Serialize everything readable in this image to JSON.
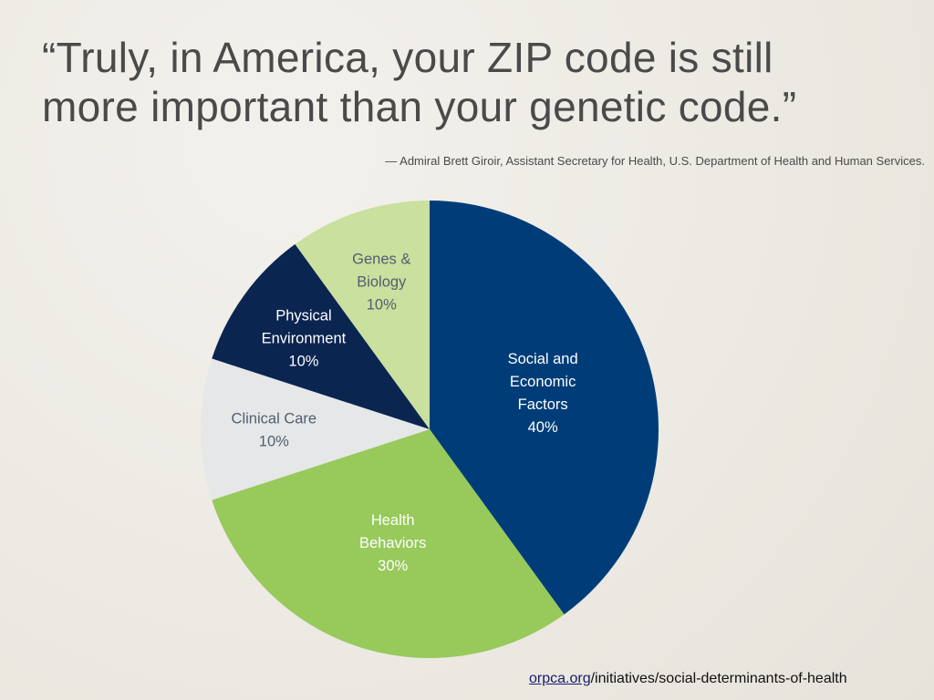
{
  "quote": {
    "line1": "“Truly, in America, your ZIP code is still",
    "line2": "more important than your genetic code.”"
  },
  "attribution": "— Admiral Brett Giroir, Assistant Secretary for Health, U.S. Department of Health and Human Services.",
  "chart_data": {
    "type": "pie",
    "title": "",
    "slices": [
      {
        "label": [
          "Social and",
          "Economic",
          "Factors"
        ],
        "value": 40,
        "value_label": "40%",
        "color": "#003d78",
        "text_color": "#ffffff"
      },
      {
        "label": [
          "Health",
          "Behaviors"
        ],
        "value": 30,
        "value_label": "30%",
        "color": "#97c95b",
        "text_color": "#ffffff"
      },
      {
        "label": [
          "Clinical Care"
        ],
        "value": 10,
        "value_label": "10%",
        "color": "#e6e7e8",
        "text_color": "#4f5f6f"
      },
      {
        "label": [
          "Physical",
          "Environment"
        ],
        "value": 10,
        "value_label": "10%",
        "color": "#0a2550",
        "text_color": "#ffffff"
      },
      {
        "label": [
          "Genes &",
          "Biology"
        ],
        "value": 10,
        "value_label": "10%",
        "color": "#c9e09e",
        "text_color": "#4f5f6f"
      }
    ],
    "start": "top",
    "direction": "clockwise"
  },
  "source": {
    "link_text": "orpca.org",
    "path_text": "/initiatives/social-determinants-of-health"
  }
}
